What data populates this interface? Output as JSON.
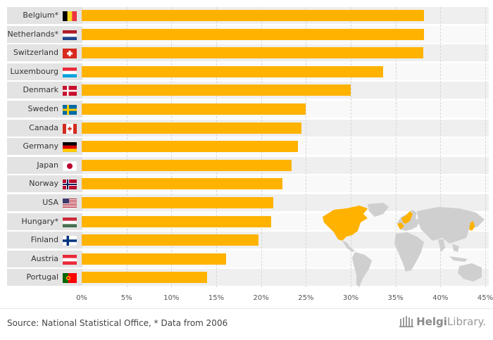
{
  "chart_data": {
    "type": "bar",
    "orientation": "horizontal",
    "title": "",
    "xlabel": "",
    "ylabel": "",
    "xlim": [
      0,
      45
    ],
    "ticks": [
      "0%",
      "5%",
      "10%",
      "15%",
      "20%",
      "25%",
      "30%",
      "35%",
      "40%",
      "45%"
    ],
    "categories": [
      {
        "name": "Belgium*",
        "flag": "belgium"
      },
      {
        "name": "Netherlands*",
        "flag": "netherlands"
      },
      {
        "name": "Switzerland",
        "flag": "switzerland"
      },
      {
        "name": "Luxembourg",
        "flag": "luxembourg"
      },
      {
        "name": "Denmark",
        "flag": "denmark"
      },
      {
        "name": "Sweden",
        "flag": "sweden"
      },
      {
        "name": "Canada",
        "flag": "canada"
      },
      {
        "name": "Germany",
        "flag": "germany"
      },
      {
        "name": "Japan",
        "flag": "japan"
      },
      {
        "name": "Norway",
        "flag": "norway"
      },
      {
        "name": "USA",
        "flag": "usa"
      },
      {
        "name": "Hungary*",
        "flag": "hungary"
      },
      {
        "name": "Finland",
        "flag": "finland"
      },
      {
        "name": "Austria",
        "flag": "austria"
      },
      {
        "name": "Portugal",
        "flag": "portugal"
      }
    ],
    "values": [
      38.2,
      38.2,
      38.1,
      33.6,
      30.0,
      25.0,
      24.5,
      24.1,
      23.4,
      22.4,
      21.4,
      21.1,
      19.7,
      16.1,
      14.0
    ],
    "bar_color": "#ffb200"
  },
  "footer": {
    "source": "Source: National Statistical Office, * Data from 2006",
    "brand_prefix": "Helgi",
    "brand_suffix": "Library."
  },
  "colors": {
    "bar": "#ffb200",
    "map_land": "#cfcfcf",
    "map_highlight": "#ffb200"
  }
}
